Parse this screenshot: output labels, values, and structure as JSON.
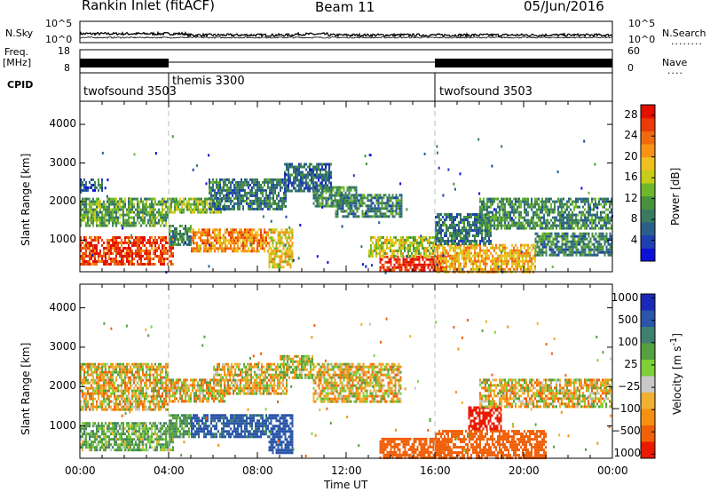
{
  "header": {
    "station": "Rankin Inlet (fitACF)",
    "beam": "Beam 11",
    "date": "05/Jun/2016"
  },
  "side_labels": {
    "nsky": "N.Sky",
    "nsearch": "N.Search",
    "freq": "Freq.",
    "freq_unit": "[MHz]",
    "nave": "Nave",
    "cpid": "CPID",
    "dots": "........",
    "dots2": "...."
  },
  "noise_axis": {
    "left_top": "10^5",
    "left_bottom": "10^0",
    "right_top": "10^5",
    "right_bottom": "10^0"
  },
  "freq_axis": {
    "left_top": "18",
    "left_bottom": "8",
    "right_top": "60",
    "right_bottom": "0"
  },
  "cpid_segments": [
    {
      "label": "twofsound 3503",
      "start_hour": 0,
      "end_hour": 4.0
    },
    {
      "label": "themis 3300",
      "start_hour": 4.0,
      "end_hour": 16.0
    },
    {
      "label": "twofsound 3503",
      "start_hour": 16.0,
      "end_hour": 24.0
    }
  ],
  "chart_data": [
    {
      "type": "heatmap",
      "panel": "power",
      "ylabel": "Slant Range [km]",
      "xlabel": "",
      "x_ticks": [
        "00:00",
        "04:00",
        "08:00",
        "12:00",
        "16:00",
        "20:00",
        "00:00"
      ],
      "y_ticks": [
        "1000",
        "2000",
        "3000",
        "4000"
      ],
      "xlim_hours": [
        0,
        24
      ],
      "ylim_km": [
        180,
        4600
      ],
      "colorbar": {
        "label": "Power [dB]",
        "ticks": [
          "4",
          "8",
          "12",
          "16",
          "20",
          "24",
          "28"
        ],
        "range": [
          0,
          30
        ],
        "colors": [
          "#0a10d8",
          "#1f3fb0",
          "#2a5f8a",
          "#3a7a62",
          "#48923e",
          "#6fb82c",
          "#c8cc1a",
          "#f0c020",
          "#f79414",
          "#f06a10",
          "#ea3a08",
          "#e21000"
        ]
      },
      "regions": [
        {
          "t0": 0.0,
          "t1": 4.2,
          "r0": 400,
          "r1": 1100,
          "power": 26
        },
        {
          "t0": 0.0,
          "t1": 4.0,
          "r0": 1400,
          "r1": 2100,
          "power": 12
        },
        {
          "t0": 0.0,
          "t1": 1.0,
          "r0": 2300,
          "r1": 2600,
          "power": 6
        },
        {
          "t0": 4.0,
          "t1": 6.5,
          "r0": 1700,
          "r1": 2100,
          "power": 14
        },
        {
          "t0": 4.0,
          "t1": 5.0,
          "r0": 900,
          "r1": 1400,
          "power": 10
        },
        {
          "t0": 5.0,
          "t1": 8.5,
          "r0": 700,
          "r1": 1300,
          "power": 22
        },
        {
          "t0": 5.8,
          "t1": 9.3,
          "r0": 1800,
          "r1": 2600,
          "power": 8
        },
        {
          "t0": 8.5,
          "t1": 9.6,
          "r0": 300,
          "r1": 1300,
          "power": 18
        },
        {
          "t0": 9.2,
          "t1": 11.3,
          "r0": 2300,
          "r1": 3000,
          "power": 7
        },
        {
          "t0": 10.5,
          "t1": 12.5,
          "r0": 1900,
          "r1": 2400,
          "power": 10
        },
        {
          "t0": 11.5,
          "t1": 14.5,
          "r0": 1600,
          "r1": 2200,
          "power": 9
        },
        {
          "t0": 13.5,
          "t1": 16.5,
          "r0": 200,
          "r1": 600,
          "power": 28
        },
        {
          "t0": 13.0,
          "t1": 16.0,
          "r0": 600,
          "r1": 1100,
          "power": 16
        },
        {
          "t0": 16.0,
          "t1": 20.5,
          "r0": 200,
          "r1": 900,
          "power": 20
        },
        {
          "t0": 16.0,
          "t1": 18.5,
          "r0": 900,
          "r1": 1700,
          "power": 8
        },
        {
          "t0": 18.0,
          "t1": 24.0,
          "r0": 1300,
          "r1": 2100,
          "power": 10
        },
        {
          "t0": 20.5,
          "t1": 24.0,
          "r0": 600,
          "r1": 1200,
          "power": 9
        }
      ]
    },
    {
      "type": "heatmap",
      "panel": "velocity",
      "ylabel": "Slant Range [km]",
      "xlabel": "Time UT",
      "x_ticks": [
        "00:00",
        "04:00",
        "08:00",
        "12:00",
        "16:00",
        "20:00",
        "00:00"
      ],
      "y_ticks": [
        "1000",
        "2000",
        "3000",
        "4000"
      ],
      "xlim_hours": [
        0,
        24
      ],
      "ylim_km": [
        180,
        4600
      ],
      "colorbar": {
        "label": "Velocity [m s^-1]",
        "ticks": [
          "1000",
          "500",
          "100",
          "25",
          "−25",
          "−100",
          "−500",
          "−1000"
        ],
        "colors": [
          "#1a2ab8",
          "#2a55a8",
          "#3f8070",
          "#55a040",
          "#7ed038",
          "#c8c8c8",
          "#f0b030",
          "#f59010",
          "#f06008",
          "#e81a00"
        ]
      },
      "regions": [
        {
          "t0": 0.0,
          "t1": 4.2,
          "r0": 400,
          "r1": 1100,
          "velocity": 150
        },
        {
          "t0": 0.0,
          "t1": 4.0,
          "r0": 1400,
          "r1": 2600,
          "velocity": 0
        },
        {
          "t0": 4.0,
          "t1": 6.5,
          "r0": 1600,
          "r1": 2200,
          "velocity": 0
        },
        {
          "t0": 4.0,
          "t1": 5.0,
          "r0": 700,
          "r1": 1300,
          "velocity": 200
        },
        {
          "t0": 5.0,
          "t1": 8.5,
          "r0": 700,
          "r1": 1300,
          "velocity": 600
        },
        {
          "t0": 6.0,
          "t1": 9.3,
          "r0": 1800,
          "r1": 2600,
          "velocity": 0
        },
        {
          "t0": 8.5,
          "t1": 9.6,
          "r0": 300,
          "r1": 1300,
          "velocity": 700
        },
        {
          "t0": 9.0,
          "t1": 10.5,
          "r0": 2200,
          "r1": 2800,
          "velocity": 60
        },
        {
          "t0": 10.5,
          "t1": 14.5,
          "r0": 1600,
          "r1": 2600,
          "velocity": 0
        },
        {
          "t0": 13.5,
          "t1": 16.5,
          "r0": 200,
          "r1": 700,
          "velocity": -300
        },
        {
          "t0": 16.0,
          "t1": 21.0,
          "r0": 200,
          "r1": 900,
          "velocity": -250
        },
        {
          "t0": 17.5,
          "t1": 19.0,
          "r0": 900,
          "r1": 1500,
          "velocity": -700
        },
        {
          "t0": 18.0,
          "t1": 24.0,
          "r0": 1500,
          "r1": 2200,
          "velocity": 0
        }
      ]
    }
  ]
}
